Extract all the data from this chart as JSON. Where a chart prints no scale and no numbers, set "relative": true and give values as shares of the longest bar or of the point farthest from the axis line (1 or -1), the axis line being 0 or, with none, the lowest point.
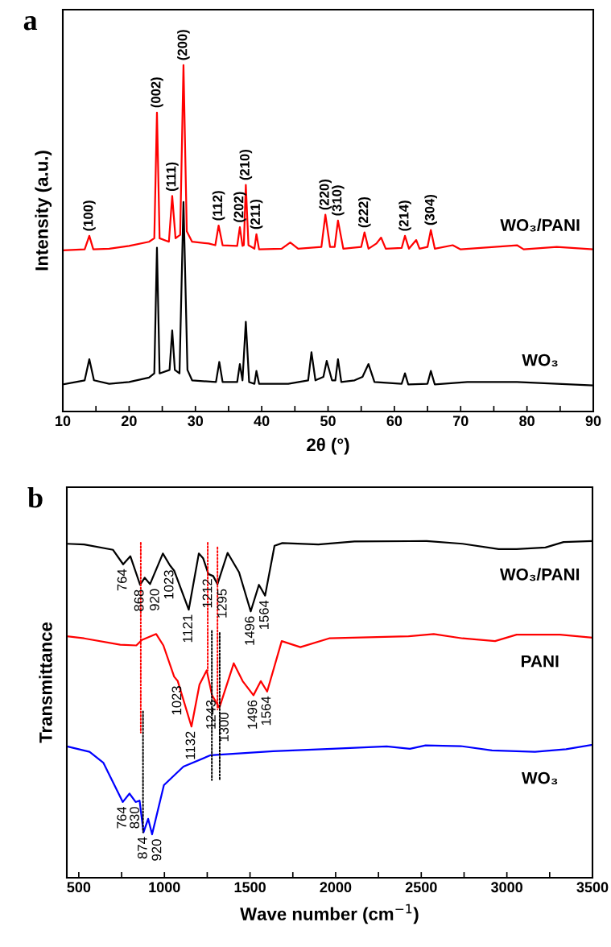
{
  "chart_data": [
    {
      "type": "line",
      "title": "a",
      "xlabel": "2θ (°)",
      "ylabel": "Intensity (a.u.)",
      "relative": true,
      "grid": false,
      "legend": false,
      "tick_labels": "x",
      "xlim": [
        10,
        90
      ],
      "xticks": [
        10,
        {
          "value": 15,
          "label": null
        },
        20,
        {
          "value": 25,
          "label": null
        },
        30,
        {
          "value": 35,
          "label": null
        },
        40,
        {
          "value": 45,
          "label": null
        },
        50,
        {
          "value": 55,
          "label": null
        },
        60,
        {
          "value": 65,
          "label": null
        },
        70,
        {
          "value": 75,
          "label": null
        },
        80,
        {
          "value": 85,
          "label": null
        },
        90
      ],
      "series": [
        {
          "name": "WO₃/PANI",
          "color": "#ff0000",
          "x": [
            10,
            13.3,
            14,
            14.6,
            17,
            20,
            23,
            23.8,
            24.2,
            24.6,
            26.0,
            26.5,
            27.0,
            27.7,
            28.2,
            28.7,
            29.5,
            32,
            33.0,
            33.5,
            34.1,
            36.3,
            36.7,
            37.1,
            37.3,
            37.6,
            38.0,
            38.9,
            39.2,
            39.6,
            43,
            44.3,
            45.5,
            49.0,
            49.6,
            50.3,
            51.0,
            51.5,
            52.3,
            55.0,
            55.5,
            56.1,
            57.3,
            58,
            58.7,
            61.1,
            61.6,
            62.2,
            63.3,
            63.8,
            65.0,
            65.5,
            66.1,
            68.8,
            70,
            78.5,
            79.5,
            84.5,
            90
          ],
          "values": [
            0.465,
            0.468,
            0.507,
            0.468,
            0.47,
            0.478,
            0.49,
            0.5,
            0.863,
            0.5,
            0.49,
            0.622,
            0.5,
            0.51,
            1.0,
            0.52,
            0.49,
            0.485,
            0.48,
            0.537,
            0.48,
            0.478,
            0.532,
            0.478,
            0.48,
            0.654,
            0.48,
            0.47,
            0.512,
            0.468,
            0.47,
            0.488,
            0.47,
            0.475,
            0.568,
            0.475,
            0.475,
            0.551,
            0.47,
            0.475,
            0.517,
            0.47,
            0.485,
            0.502,
            0.47,
            0.472,
            0.507,
            0.47,
            0.495,
            0.47,
            0.475,
            0.524,
            0.47,
            0.48,
            0.468,
            0.48,
            0.468,
            0.475,
            0.468
          ]
        },
        {
          "name": "WO₃",
          "color": "#000000",
          "x": [
            10,
            13.3,
            14,
            14.7,
            17,
            20,
            23,
            23.8,
            24.2,
            24.6,
            26.1,
            26.5,
            26.9,
            27.6,
            28.2,
            28.8,
            29.5,
            33.1,
            33.6,
            34.1,
            36.3,
            36.7,
            37.1,
            37.6,
            38.1,
            38.9,
            39.2,
            39.6,
            44,
            47.0,
            47.5,
            48.1,
            49.3,
            49.8,
            50.6,
            51.1,
            51.5,
            52.0,
            54,
            55.2,
            56.1,
            57,
            61.1,
            61.6,
            62.1,
            65.0,
            65.5,
            66.1,
            71,
            78.5,
            90
          ],
          "values": [
            0.078,
            0.09,
            0.151,
            0.09,
            0.08,
            0.085,
            0.098,
            0.11,
            0.473,
            0.11,
            0.12,
            0.234,
            0.12,
            0.11,
            0.605,
            0.12,
            0.09,
            0.085,
            0.143,
            0.085,
            0.085,
            0.137,
            0.09,
            0.259,
            0.085,
            0.08,
            0.117,
            0.08,
            0.08,
            0.09,
            0.171,
            0.09,
            0.1,
            0.146,
            0.09,
            0.09,
            0.151,
            0.085,
            0.09,
            0.1,
            0.137,
            0.085,
            0.08,
            0.11,
            0.078,
            0.08,
            0.117,
            0.078,
            0.085,
            0.085,
            0.075
          ]
        }
      ],
      "annotations": [
        {
          "text": "(100)",
          "x": 14,
          "y": 0.507
        },
        {
          "text": "(002)",
          "x": 24.2,
          "y": 0.863
        },
        {
          "text": "(111)",
          "x": 26.5,
          "y": 0.622
        },
        {
          "text": "(200)",
          "x": 28.2,
          "y": 1.0
        },
        {
          "text": "(112)",
          "x": 33.5,
          "y": 0.537
        },
        {
          "text": "(202)",
          "x": 36.7,
          "y": 0.532
        },
        {
          "text": "(210)",
          "x": 37.6,
          "y": 0.654
        },
        {
          "text": "(211)",
          "x": 39.2,
          "y": 0.512
        },
        {
          "text": "(220)",
          "x": 49.6,
          "y": 0.568
        },
        {
          "text": "(310)",
          "x": 51.5,
          "y": 0.551
        },
        {
          "text": "(222)",
          "x": 55.5,
          "y": 0.517
        },
        {
          "text": "(214)",
          "x": 61.6,
          "y": 0.507
        },
        {
          "text": "(304)",
          "x": 65.5,
          "y": 0.524
        }
      ]
    },
    {
      "type": "line",
      "title": "b",
      "xlabel": "Wave number (cm$^{−1}$)",
      "ylabel": "Transmittance",
      "relative": true,
      "grid": false,
      "legend": false,
      "tick_labels": "x",
      "xlim": [
        430,
        3500
      ],
      "xticks": [
        500,
        {
          "value": 750,
          "label": null
        },
        1000,
        {
          "value": 1250,
          "label": null
        },
        1500,
        {
          "value": 1750,
          "label": null
        },
        2000,
        {
          "value": 2250,
          "label": null
        },
        2500,
        {
          "value": 2750,
          "label": null
        },
        3000,
        {
          "value": 3250,
          "label": null
        },
        3500
      ],
      "series": [
        {
          "name": "WO₃/PANI",
          "color": "#000000",
          "x": [
            430,
            531,
            700,
            759,
            801,
            858,
            885,
            916,
            991,
            1032,
            1057,
            1142,
            1201,
            1226,
            1257,
            1285,
            1310,
            1369,
            1436,
            1504,
            1552,
            1588,
            1643,
            1689,
            1899,
            2110,
            2531,
            2741,
            2952,
            3057,
            3225,
            3331,
            3499
          ],
          "values": [
            0.992,
            0.99,
            0.974,
            0.931,
            0.955,
            0.87,
            0.891,
            0.872,
            0.963,
            0.928,
            0.912,
            0.796,
            0.963,
            0.949,
            0.902,
            0.896,
            0.872,
            0.965,
            0.907,
            0.791,
            0.87,
            0.838,
            0.986,
            0.994,
            0.99,
            0.999,
            1.0,
            0.992,
            0.976,
            0.976,
            0.981,
            0.997,
            1.0
          ]
        },
        {
          "name": "PANI",
          "color": "#ff0000",
          "x": [
            430,
            531,
            742,
            836,
            868,
            952,
            994,
            1057,
            1078,
            1158,
            1205,
            1247,
            1278,
            1321,
            1405,
            1457,
            1520,
            1563,
            1600,
            1685,
            1794,
            1962,
            2426,
            2573,
            2741,
            2931,
            3057,
            3310,
            3499
          ],
          "values": [
            0.717,
            0.711,
            0.692,
            0.69,
            0.706,
            0.724,
            0.69,
            0.597,
            0.584,
            0.449,
            0.574,
            0.616,
            0.542,
            0.505,
            0.637,
            0.584,
            0.542,
            0.584,
            0.553,
            0.703,
            0.685,
            0.711,
            0.717,
            0.724,
            0.711,
            0.703,
            0.722,
            0.722,
            0.713
          ]
        },
        {
          "name": "WO₃",
          "color": "#0000ff",
          "x": [
            431,
            563,
            643,
            757,
            796,
            832,
            855,
            878,
            905,
            928,
            997,
            1111,
            1270,
            1635,
            1978,
            2298,
            2434,
            2525,
            2731,
            2913,
            3164,
            3346,
            3500
          ],
          "values": [
            0.39,
            0.374,
            0.342,
            0.225,
            0.25,
            0.225,
            0.229,
            0.135,
            0.175,
            0.129,
            0.275,
            0.33,
            0.364,
            0.376,
            0.383,
            0.39,
            0.383,
            0.393,
            0.391,
            0.378,
            0.374,
            0.382,
            0.395
          ]
        },
        {
          "color": "#ff0000",
          "line_style": "dotted",
          "x": [
            862,
            862
          ],
          "values": [
            0.995,
            0.431
          ]
        },
        {
          "color": "#ff0000",
          "line_style": "dotted",
          "x": [
            1253,
            1253
          ],
          "values": [
            0.995,
            0.616
          ]
        },
        {
          "color": "#ff0000",
          "line_style": "dotted",
          "x": [
            1310,
            1310
          ],
          "values": [
            0.981,
            0.5
          ]
        },
        {
          "color": "#000000",
          "line_style": "dotted",
          "x": [
            875,
            875
          ],
          "values": [
            0.494,
            0.135
          ]
        },
        {
          "color": "#000000",
          "line_style": "dotted",
          "x": [
            1277,
            1277
          ],
          "values": [
            0.733,
            0.29
          ]
        },
        {
          "color": "#000000",
          "line_style": "dotted",
          "x": [
            1323,
            1323
          ],
          "values": [
            0.727,
            0.29
          ]
        }
      ],
      "annotations": [
        {
          "text": "764",
          "x": 759,
          "y": 0.931
        },
        {
          "text": "868",
          "x": 858,
          "y": 0.87
        },
        {
          "text": "920",
          "x": 916,
          "y": 0.872
        },
        {
          "text": "1023",
          "x": 1032,
          "y": 0.928
        },
        {
          "text": "1121",
          "x": 1142,
          "y": 0.796
        },
        {
          "text": "1212",
          "x": 1257,
          "y": 0.902
        },
        {
          "text": "1295",
          "x": 1310,
          "y": 0.872
        },
        {
          "text": "1496",
          "x": 1504,
          "y": 0.791
        },
        {
          "text": "1564",
          "x": 1588,
          "y": 0.838
        },
        {
          "text": "1023",
          "x": 1078,
          "y": 0.584
        },
        {
          "text": "1132",
          "x": 1158,
          "y": 0.449
        },
        {
          "text": "1243",
          "x": 1278,
          "y": 0.542
        },
        {
          "text": "1300",
          "x": 1321,
          "y": 0.505
        },
        {
          "text": "1496",
          "x": 1520,
          "y": 0.542
        },
        {
          "text": "1564",
          "x": 1600,
          "y": 0.553
        },
        {
          "text": "764",
          "x": 757,
          "y": 0.225
        },
        {
          "text": "830",
          "x": 832,
          "y": 0.225
        },
        {
          "text": "874",
          "x": 878,
          "y": 0.135
        },
        {
          "text": "920",
          "x": 928,
          "y": 0.129
        }
      ]
    }
  ]
}
